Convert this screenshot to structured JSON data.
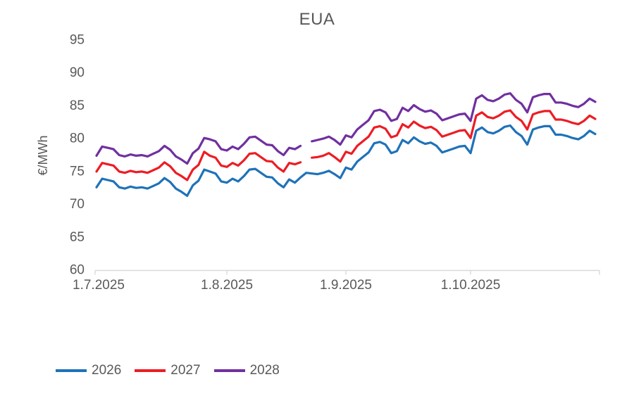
{
  "title": "EUA",
  "colors": {
    "series_2026": "#1F72B8",
    "series_2027": "#ED1C24",
    "series_2028": "#7030A0",
    "text": "#595959",
    "axis_line": "#D9D9D9",
    "background": "#FFFFFF"
  },
  "chart_data": {
    "type": "line",
    "title": "EUA",
    "xlabel": "",
    "ylabel": "€/MWh",
    "ylim": [
      60,
      95
    ],
    "y_ticks": [
      "60",
      "65",
      "70",
      "75",
      "80",
      "85",
      "90",
      "95"
    ],
    "x_ticks": [
      {
        "i": 0,
        "label": "1.7.2025"
      },
      {
        "i": 23,
        "label": "1.8.2025"
      },
      {
        "i": 44,
        "label": "1.9.2025"
      },
      {
        "i": 66,
        "label": "1.10.2025"
      }
    ],
    "grid": false,
    "legend_position": "bottom-left",
    "x": [
      "1.7.2025",
      "2.7.2025",
      "3.7.2025",
      "4.7.2025",
      "7.7.2025",
      "8.7.2025",
      "9.7.2025",
      "10.7.2025",
      "11.7.2025",
      "14.7.2025",
      "15.7.2025",
      "16.7.2025",
      "17.7.2025",
      "18.7.2025",
      "21.7.2025",
      "22.7.2025",
      "23.7.2025",
      "24.7.2025",
      "25.7.2025",
      "28.7.2025",
      "29.7.2025",
      "30.7.2025",
      "31.7.2025",
      "1.8.2025",
      "4.8.2025",
      "5.8.2025",
      "6.8.2025",
      "7.8.2025",
      "8.8.2025",
      "11.8.2025",
      "12.8.2025",
      "13.8.2025",
      "14.8.2025",
      "15.8.2025",
      "18.8.2025",
      "19.8.2025",
      "20.8.2025",
      "21.8.2025",
      "22.8.2025",
      "25.8.2025",
      "26.8.2025",
      "27.8.2025",
      "28.8.2025",
      "29.8.2025",
      "1.9.2025",
      "2.9.2025",
      "3.9.2025",
      "4.9.2025",
      "5.9.2025",
      "8.9.2025",
      "9.9.2025",
      "10.9.2025",
      "11.9.2025",
      "12.9.2025",
      "15.9.2025",
      "16.9.2025",
      "17.9.2025",
      "18.9.2025",
      "19.9.2025",
      "22.9.2025",
      "23.9.2025",
      "24.9.2025",
      "25.9.2025",
      "26.9.2025",
      "29.9.2025",
      "30.9.2025",
      "1.10.2025",
      "2.10.2025",
      "3.10.2025",
      "6.10.2025",
      "7.10.2025",
      "8.10.2025",
      "9.10.2025",
      "10.10.2025",
      "13.10.2025",
      "14.10.2025",
      "15.10.2025",
      "16.10.2025",
      "17.10.2025",
      "20.10.2025",
      "21.10.2025",
      "22.10.2025",
      "23.10.2025",
      "24.10.2025",
      "27.10.2025",
      "28.10.2025",
      "29.10.2025",
      "30.10.2025",
      "31.10.2025"
    ],
    "series": [
      {
        "name": "2026",
        "color": "#1F72B8",
        "values": [
          72.6,
          73.9,
          73.7,
          73.5,
          72.6,
          72.4,
          72.7,
          72.5,
          72.6,
          72.4,
          72.8,
          73.2,
          74.0,
          73.4,
          72.4,
          71.9,
          71.3,
          72.9,
          73.6,
          75.3,
          75.0,
          74.7,
          73.5,
          73.3,
          73.9,
          73.5,
          74.3,
          75.3,
          75.4,
          74.8,
          74.2,
          74.1,
          73.2,
          72.6,
          73.8,
          73.3,
          74.1,
          74.8,
          74.7,
          74.6,
          74.8,
          75.1,
          74.6,
          74.0,
          75.6,
          75.3,
          76.5,
          77.2,
          77.9,
          79.3,
          79.5,
          79.1,
          77.8,
          78.1,
          79.8,
          79.3,
          80.2,
          79.6,
          79.2,
          79.4,
          78.9,
          77.9,
          78.2,
          78.5,
          78.8,
          78.9,
          77.8,
          81.2,
          81.7,
          81.0,
          80.8,
          81.2,
          81.8,
          82.0,
          81.0,
          80.4,
          79.1,
          81.4,
          81.7,
          81.9,
          81.9,
          80.6,
          80.6,
          80.4,
          80.1,
          79.9,
          80.4,
          81.2,
          80.7
        ]
      },
      {
        "name": "2027",
        "color": "#ED1C24",
        "values": [
          75.0,
          76.3,
          76.1,
          75.9,
          75.0,
          74.8,
          75.1,
          74.9,
          75.0,
          74.8,
          75.2,
          75.6,
          76.4,
          75.8,
          74.8,
          74.3,
          73.7,
          75.3,
          76.0,
          78.0,
          77.4,
          77.1,
          75.9,
          75.7,
          76.3,
          75.9,
          76.7,
          77.7,
          77.8,
          77.2,
          76.6,
          76.5,
          75.6,
          75.0,
          76.3,
          76.1,
          76.4,
          null,
          77.1,
          77.2,
          77.4,
          77.8,
          77.2,
          76.5,
          78.0,
          77.7,
          78.9,
          79.6,
          80.3,
          81.7,
          81.9,
          81.5,
          80.2,
          80.5,
          82.2,
          81.7,
          82.6,
          82.0,
          81.6,
          81.8,
          81.3,
          80.3,
          80.6,
          80.9,
          81.2,
          81.3,
          80.1,
          83.5,
          84.0,
          83.3,
          83.1,
          83.5,
          84.1,
          84.3,
          83.3,
          82.7,
          81.4,
          83.7,
          84.0,
          84.2,
          84.2,
          82.9,
          82.9,
          82.7,
          82.4,
          82.2,
          82.7,
          83.5,
          83.0
        ]
      },
      {
        "name": "2028",
        "color": "#7030A0",
        "values": [
          77.4,
          78.8,
          78.6,
          78.4,
          77.5,
          77.3,
          77.6,
          77.4,
          77.5,
          77.3,
          77.7,
          78.1,
          78.9,
          78.3,
          77.3,
          76.8,
          76.2,
          77.8,
          78.5,
          80.1,
          79.9,
          79.6,
          78.4,
          78.2,
          78.8,
          78.4,
          79.2,
          80.2,
          80.3,
          79.7,
          79.1,
          79.0,
          78.1,
          77.5,
          78.6,
          78.4,
          78.9,
          null,
          79.6,
          79.8,
          80.0,
          80.3,
          79.8,
          79.1,
          80.5,
          80.2,
          81.4,
          82.1,
          82.8,
          84.2,
          84.4,
          84.0,
          82.7,
          83.0,
          84.7,
          84.2,
          85.1,
          84.5,
          84.1,
          84.3,
          83.8,
          82.8,
          83.1,
          83.4,
          83.7,
          83.8,
          82.7,
          86.1,
          86.6,
          85.9,
          85.7,
          86.1,
          86.7,
          86.9,
          85.9,
          85.3,
          84.0,
          86.3,
          86.6,
          86.8,
          86.8,
          85.5,
          85.5,
          85.3,
          85.0,
          84.8,
          85.3,
          86.1,
          85.6
        ]
      }
    ]
  }
}
